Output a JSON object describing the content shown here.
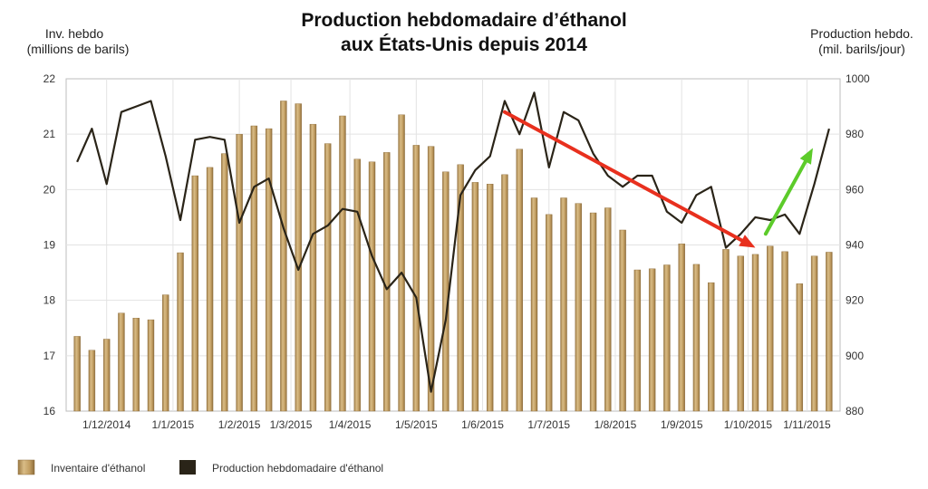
{
  "chart_data": {
    "type": "bar+line",
    "title_lines": [
      "Production hebdomadaire d’éthanol",
      "aux États-Unis depuis 2014"
    ],
    "y_left_label_lines": [
      "Inv. hebdo",
      "(millions de barils)"
    ],
    "y_right_label_lines": [
      "Production hebdo.",
      "(mil. barils/jour)"
    ],
    "y_left_range": [
      16,
      22
    ],
    "y_left_ticks": [
      "16",
      "17",
      "18",
      "19",
      "20",
      "21",
      "22"
    ],
    "y_right_range": [
      880,
      1000
    ],
    "y_right_ticks": [
      "880",
      "900",
      "920",
      "940",
      "960",
      "980",
      "1000"
    ],
    "x_tick_labels": [
      "1/12/2014",
      "1/1/2015",
      "1/2/2015",
      "1/3/2015",
      "1/4/2015",
      "1/5/2015",
      "1/6/2015",
      "1/7/2015",
      "1/8/2015",
      "1/9/2015",
      "1/10/2015",
      "1/11/2015"
    ],
    "x_tick_positions": [
      2.5,
      7,
      11.5,
      15,
      19,
      23.5,
      28,
      32.5,
      37,
      41.5,
      46,
      50
    ],
    "grid": true,
    "legend_position": "bottom-left",
    "series": [
      {
        "name": "Inventaire d'éthanol",
        "kind": "bar",
        "axis": "left",
        "color": "#B9935A",
        "values": [
          17.35,
          17.1,
          17.3,
          17.77,
          17.68,
          17.65,
          18.1,
          18.86,
          20.25,
          20.4,
          20.65,
          21.0,
          21.15,
          21.1,
          21.6,
          21.55,
          21.18,
          20.83,
          21.33,
          20.55,
          20.5,
          20.67,
          21.35,
          20.8,
          20.78,
          20.32,
          20.45,
          20.13,
          20.1,
          20.27,
          20.73,
          19.85,
          19.55,
          19.85,
          19.75,
          19.58,
          19.67,
          19.27,
          18.55,
          18.57,
          18.64,
          19.02,
          18.65,
          18.32,
          18.92,
          18.8,
          18.83,
          18.98,
          18.88,
          18.3,
          18.8,
          18.87
        ]
      },
      {
        "name": "Production hebdomadaire d'éthanol",
        "kind": "line",
        "axis": "right",
        "color": "#2A2418",
        "values": [
          970,
          982,
          962,
          988,
          990,
          992,
          972,
          949,
          978,
          979,
          978,
          948,
          961,
          964,
          946,
          931,
          944,
          947,
          953,
          952,
          936,
          924,
          930,
          921,
          887,
          913,
          958,
          967,
          972,
          992,
          980,
          995,
          968,
          988,
          985,
          973,
          965,
          961,
          965,
          965,
          952,
          948,
          958,
          961,
          939,
          944,
          950,
          949,
          951,
          944,
          962,
          982
        ]
      }
    ],
    "annotations": [
      {
        "type": "arrow",
        "color": "#E8301E",
        "from": [
          29.5,
          21.4
        ],
        "to": [
          46.5,
          18.95
        ]
      },
      {
        "type": "arrow",
        "color": "#5CCB2A",
        "from": [
          47.2,
          19.2
        ],
        "to": [
          50.4,
          20.75
        ]
      }
    ]
  }
}
